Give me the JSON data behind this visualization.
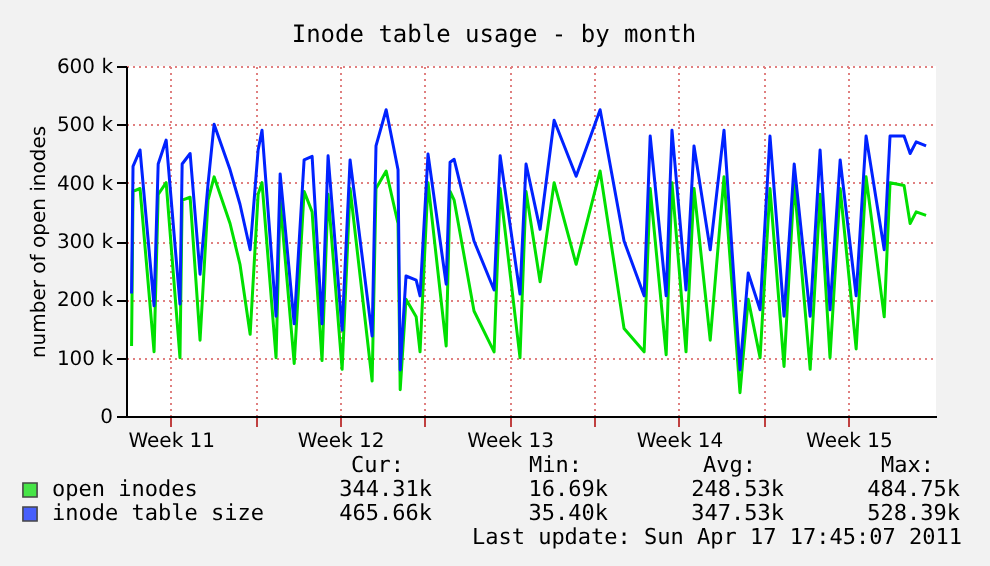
{
  "chart_data": {
    "type": "line",
    "title": "Inode table usage - by month",
    "ylabel": "number of open inodes",
    "x": [
      "2011-03-15T21:07",
      "2011-03-15T22:34",
      "2011-03-16T05:31",
      "2011-03-16T19:26",
      "2011-03-16T23:31",
      "2011-03-17T07:26",
      "2011-03-17T21:07",
      "2011-03-17T23:17",
      "2011-03-18T07:12",
      "2011-03-18T17:02",
      "2011-03-19T00:58",
      "2011-03-19T06:58",
      "2011-03-19T22:48",
      "2011-03-20T08:38",
      "2011-03-20T18:43",
      "2011-03-21T02:38",
      "2011-03-21T06:29",
      "2011-03-21T20:24",
      "2011-03-22T00:29",
      "2011-03-22T14:24",
      "2011-03-23T00:14",
      "2011-03-23T08:10",
      "2011-03-23T18:00",
      "2011-03-24T00:00",
      "2011-03-24T13:55",
      "2011-03-24T21:50",
      "2011-03-25T19:41",
      "2011-03-25T23:31",
      "2011-03-26T09:36",
      "2011-03-26T21:22",
      "2011-03-26T23:31",
      "2011-03-27T05:17",
      "2011-03-27T15:22",
      "2011-03-27T19:12",
      "2011-03-28T03:07",
      "2011-03-28T21:07",
      "2011-03-29T00:58",
      "2011-03-29T05:02",
      "2011-03-30T00:43",
      "2011-03-30T20:38",
      "2011-03-31T02:38",
      "2011-03-31T22:19",
      "2011-04-01T04:19",
      "2011-04-01T18:14",
      "2011-04-02T08:10",
      "2011-04-03T06:00",
      "2011-04-04T05:46",
      "2011-04-05T05:31",
      "2011-04-06T01:26",
      "2011-04-06T07:26",
      "2011-04-06T23:17",
      "2011-04-07T05:02",
      "2011-04-07T18:58",
      "2011-04-08T02:53",
      "2011-04-08T18:58",
      "2011-04-09T08:38",
      "2011-04-10T00:29",
      "2011-04-10T08:38",
      "2011-04-10T20:24",
      "2011-04-11T06:14",
      "2011-04-11T20:10",
      "2011-04-12T06:14",
      "2011-04-12T22:05",
      "2011-04-13T07:55",
      "2011-04-13T17:46",
      "2011-04-14T03:50",
      "2011-04-14T19:41",
      "2011-04-15T05:31",
      "2011-04-15T23:31",
      "2011-04-16T05:17",
      "2011-04-16T19:12",
      "2011-04-17T01:12",
      "2011-04-17T07:12",
      "2011-04-17T17:02"
    ],
    "series": [
      {
        "name": "open inodes",
        "color": "#00e000",
        "values": [
          120000,
          385000,
          390000,
          110000,
          380000,
          400000,
          100000,
          370000,
          375000,
          130000,
          370000,
          410000,
          330000,
          260000,
          140000,
          380000,
          400000,
          100000,
          370000,
          90000,
          385000,
          350000,
          95000,
          380000,
          80000,
          390000,
          60000,
          390000,
          420000,
          330000,
          45000,
          200000,
          170000,
          110000,
          400000,
          120000,
          385000,
          370000,
          180000,
          110000,
          390000,
          100000,
          385000,
          230000,
          400000,
          260000,
          420000,
          150000,
          110000,
          390000,
          105000,
          400000,
          110000,
          390000,
          130000,
          410000,
          40000,
          200000,
          100000,
          390000,
          85000,
          400000,
          80000,
          380000,
          100000,
          390000,
          115000,
          410000,
          170000,
          400000,
          395000,
          330000,
          350000,
          344000
        ]
      },
      {
        "name": "inode table size",
        "color": "#0022ff",
        "values": [
          210000,
          428000,
          456000,
          189000,
          432000,
          473000,
          192000,
          432000,
          450000,
          243000,
          398000,
          500000,
          422000,
          363000,
          285000,
          456000,
          490000,
          171000,
          415000,
          158000,
          439000,
          445000,
          158000,
          446000,
          147000,
          439000,
          137000,
          463000,
          525000,
          422000,
          79000,
          240000,
          233000,
          206000,
          449000,
          226000,
          435000,
          440000,
          300000,
          216000,
          446000,
          209000,
          432000,
          320000,
          507000,
          411000,
          525000,
          300000,
          206000,
          480000,
          206000,
          490000,
          216000,
          463000,
          285000,
          490000,
          79000,
          245000,
          182000,
          480000,
          171000,
          432000,
          171000,
          456000,
          182000,
          439000,
          206000,
          480000,
          285000,
          480000,
          480000,
          450000,
          470000,
          463000
        ]
      }
    ],
    "xlim": [
      "2011-03-15T15:36",
      "2011-04-18T02:52"
    ],
    "xticks": [
      {
        "value": "2011-03-17T12:00",
        "label": "Week 11"
      },
      {
        "value": "2011-03-21",
        "label": null
      },
      {
        "value": "2011-03-24T12:00",
        "label": "Week 12"
      },
      {
        "value": "2011-03-28",
        "label": null
      },
      {
        "value": "2011-03-31T12:00",
        "label": "Week 13"
      },
      {
        "value": "2011-04-04",
        "label": null
      },
      {
        "value": "2011-04-07T12:00",
        "label": "Week 14"
      },
      {
        "value": "2011-04-11",
        "label": null
      },
      {
        "value": "2011-04-14T12:00",
        "label": "Week 15"
      }
    ],
    "ylim": [
      0,
      600000
    ],
    "yticks": [
      0,
      {
        "value": 100000,
        "label": "100 k"
      },
      {
        "value": 200000,
        "label": "200 k"
      },
      {
        "value": 300000,
        "label": "300 k"
      },
      {
        "value": 400000,
        "label": "400 k"
      },
      {
        "value": 500000,
        "label": "500 k"
      },
      {
        "value": 600000,
        "label": "600 k"
      }
    ],
    "grid": true,
    "legend": "bottom",
    "marker": "none",
    "line_style": "solid",
    "annotations": [
      "Cur:",
      "Min:",
      "Avg:",
      "Max:",
      "344.31k",
      "16.69k",
      "248.53k",
      "484.75k",
      "465.66k",
      "35.40k",
      "347.53k",
      "528.39k",
      "Last update: Sun Apr 17 17:45:07 2011"
    ]
  }
}
